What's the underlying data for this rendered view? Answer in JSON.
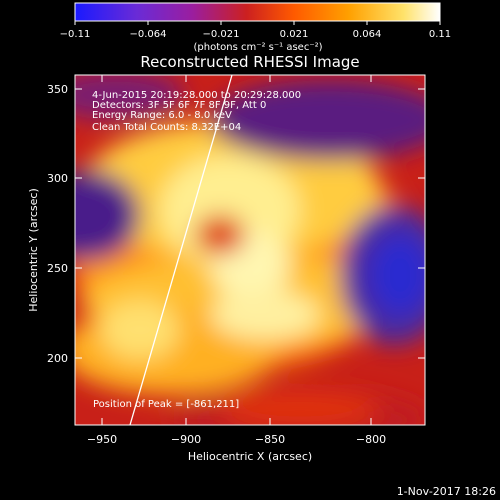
{
  "colorbar": {
    "ticks": [
      "−0.11",
      "−0.064",
      "−0.021",
      "0.021",
      "0.064",
      "0.11"
    ],
    "units": "(photons cm⁻² s⁻¹ asec⁻²)",
    "stops": [
      "#1a1aff",
      "#6a2bd6",
      "#9a1ea0",
      "#cc2020",
      "#ff5a00",
      "#ffa000",
      "#ffe26a",
      "#ffffff"
    ]
  },
  "image": {
    "title": "Reconstructed RHESSI Image",
    "info_lines": [
      " 4-Jun-2015 20:19:28.000 to 20:29:28.000",
      "Detectors: 3F 5F 6F 7F 8F 9F, Att 0",
      "Energy Range: 6.0 - 8.0 keV",
      "Clean     Total Counts: 8.32E+04"
    ],
    "peak_text": "Position of Peak = [-861,211]",
    "timestamp": "1-Nov-2017 18:26"
  },
  "axes": {
    "xlabel": "Heliocentric X (arcsec)",
    "ylabel": "Heliocentric Y (arcsec)",
    "xticks": [
      "−950",
      "−900",
      "−850",
      "−800"
    ],
    "yticks": [
      "350",
      "300",
      "250",
      "200"
    ]
  }
}
